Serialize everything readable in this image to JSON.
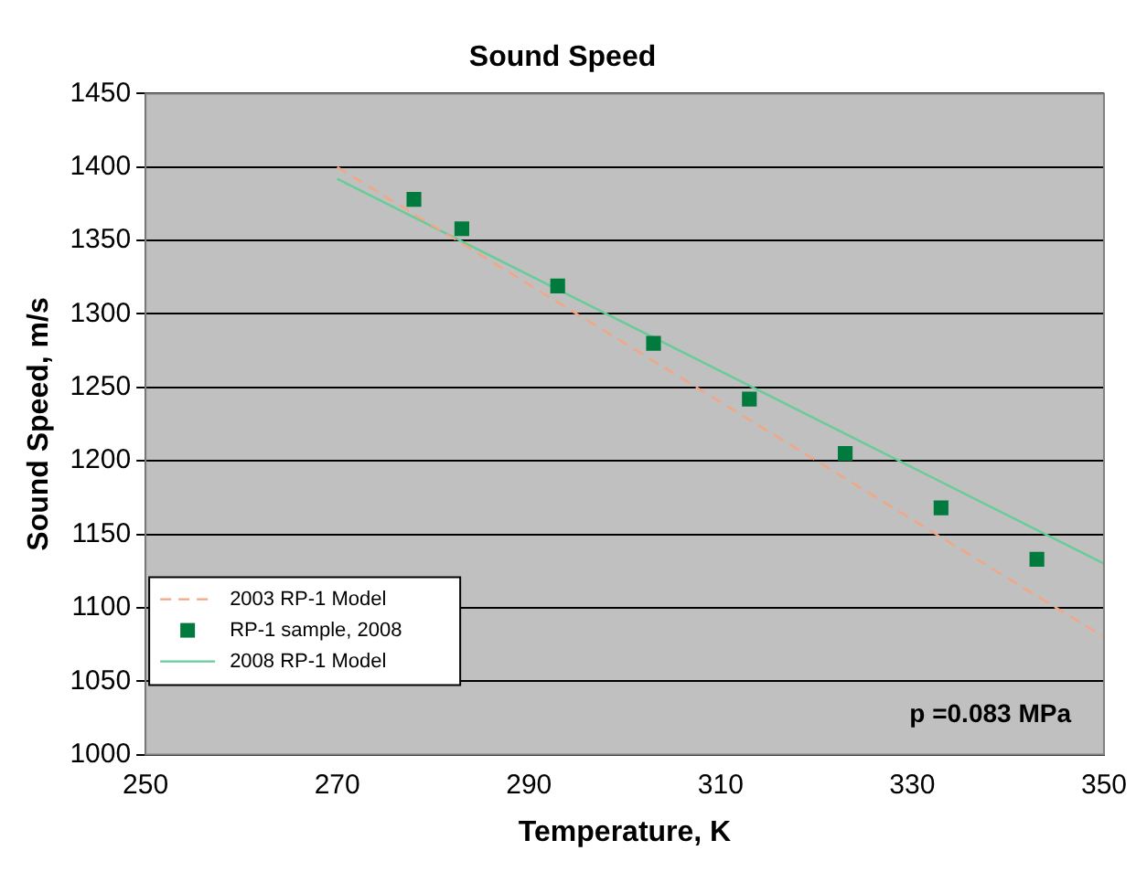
{
  "chart_data": {
    "type": "scatter",
    "title": "Sound Speed",
    "xlabel": "Temperature, K",
    "ylabel": "Sound Speed, m/s",
    "xlim": [
      250,
      350
    ],
    "xticks": [
      250,
      270,
      290,
      310,
      330,
      350
    ],
    "ylim": [
      1000,
      1450
    ],
    "yticks": [
      1000,
      1050,
      1100,
      1150,
      1200,
      1250,
      1300,
      1350,
      1400,
      1450
    ],
    "grid": "y",
    "legend": "bottom left",
    "annotations": [
      {
        "text": "p =0.083 MPa"
      }
    ],
    "series": [
      {
        "name": "2003 RP-1 Model",
        "type": "line",
        "color": "#f4a582",
        "line_style": "dashed",
        "marker": "none",
        "x": [
          270,
          350
        ],
        "values": [
          1400,
          1080
        ]
      },
      {
        "name": "RP-1 sample, 2008",
        "type": "scatter",
        "color": "#007a3d",
        "marker": "square",
        "x": [
          278,
          283,
          293,
          303,
          313,
          323,
          333,
          343
        ],
        "values": [
          1378,
          1358,
          1319,
          1280,
          1242,
          1205,
          1168,
          1133
        ]
      },
      {
        "name": "2008 RP-1 Model",
        "type": "line",
        "color": "#66cc99",
        "line_style": "solid",
        "marker": "none",
        "x": [
          270,
          350
        ],
        "values": [
          1392,
          1130
        ]
      }
    ]
  }
}
